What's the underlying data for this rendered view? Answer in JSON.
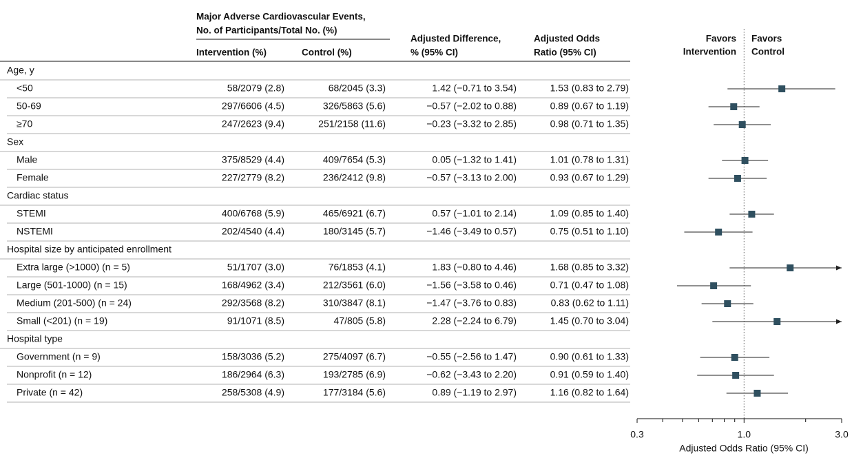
{
  "header": {
    "mace_1": "Major Adverse Cardiovascular Events,",
    "mace_2": "No. of Participants/Total No. (%)",
    "intervention": "Intervention (%)",
    "control": "Control (%)",
    "diff_1": "Adjusted Difference,",
    "diff_2": "% (95% CI)",
    "or_1": "Adjusted Odds",
    "or_2": "Ratio (95% CI)",
    "favors_int_1": "Favors",
    "favors_int_2": "Intervention",
    "favors_ctl_1": "Favors",
    "favors_ctl_2": "Control"
  },
  "table": {
    "rows": [
      {
        "label": "Age, y"
      },
      {
        "label": "<50",
        "cells": [
          "58/2079 (2.8)",
          "68/2045 (3.3)",
          "1.42 (−0.71 to 3.54)",
          "1.53 (0.83 to 2.79)"
        ]
      },
      {
        "label": "50-69",
        "cells": [
          "297/6606 (4.5)",
          "326/5863 (5.6)",
          "−0.57 (−2.02 to 0.88)",
          "0.89 (0.67 to 1.19)"
        ]
      },
      {
        "label": "≥70",
        "cells": [
          "247/2623 (9.4)",
          "251/2158 (11.6)",
          "−0.23 (−3.32 to 2.85)",
          "0.98 (0.71 to 1.35)"
        ]
      },
      {
        "label": "Sex"
      },
      {
        "label": "Male",
        "cells": [
          "375/8529 (4.4)",
          "409/7654 (5.3)",
          "0.05 (−1.32 to 1.41)",
          "1.01 (0.78 to 1.31)"
        ]
      },
      {
        "label": "Female",
        "cells": [
          "227/2779 (8.2)",
          "236/2412 (9.8)",
          "−0.57 (−3.13 to 2.00)",
          "0.93 (0.67 to 1.29)"
        ]
      },
      {
        "label": "Cardiac status"
      },
      {
        "label": "STEMI",
        "cells": [
          "400/6768 (5.9)",
          "465/6921 (6.7)",
          "0.57 (−1.01 to 2.14)",
          "1.09 (0.85 to 1.40)"
        ]
      },
      {
        "label": "NSTEMI",
        "cells": [
          "202/4540 (4.4)",
          "180/3145 (5.7)",
          "−1.46 (−3.49 to 0.57)",
          "0.75 (0.51 to 1.10)"
        ]
      },
      {
        "label": "Hospital size by anticipated enrollment"
      },
      {
        "label": "Extra large (>1000) (n = 5)",
        "cells": [
          "51/1707 (3.0)",
          "76/1853 (4.1)",
          "1.83 (−0.80 to 4.46)",
          "1.68 (0.85 to 3.32)"
        ]
      },
      {
        "label": "Large (501-1000) (n = 15)",
        "cells": [
          "168/4962 (3.4)",
          "212/3561 (6.0)",
          "−1.56 (−3.58 to 0.46)",
          "0.71 (0.47 to 1.08)"
        ]
      },
      {
        "label": "Medium (201-500) (n = 24)",
        "cells": [
          "292/3568 (8.2)",
          "310/3847 (8.1)",
          "−1.47 (−3.76 to 0.83)",
          "0.83 (0.62 to 1.11)"
        ]
      },
      {
        "label": "Small (<201) (n = 19)",
        "cells": [
          "91/1071 (8.5)",
          "47/805 (5.8)",
          "2.28 (−2.24 to 6.79)",
          "1.45 (0.70 to 3.04)"
        ]
      },
      {
        "label": "Hospital type"
      },
      {
        "label": "Government (n = 9)",
        "cells": [
          "158/3036 (5.2)",
          "275/4097 (6.7)",
          "−0.55 (−2.56 to 1.47)",
          "0.90 (0.61 to 1.33)"
        ]
      },
      {
        "label": "Nonprofit (n = 12)",
        "cells": [
          "186/2964 (6.3)",
          "193/2785 (6.9)",
          "−0.62 (−3.43 to 2.20)",
          "0.91 (0.59 to 1.40)"
        ]
      },
      {
        "label": "Private (n = 42)",
        "cells": [
          "258/5308 (4.9)",
          "177/3184 (5.6)",
          "0.89 (−1.19 to 2.97)",
          "1.16 (0.82 to 1.64)"
        ]
      }
    ]
  },
  "chart_data": {
    "type": "forest",
    "x_label": "Adjusted Odds Ratio (95% CI)",
    "log_x": true,
    "color": "#2f4f5f",
    "xlim": [
      0.3,
      3
    ],
    "xticks": [
      0.3,
      {
        "value": 1,
        "label": "1.0"
      },
      {
        "value": 3,
        "label": "3.0"
      }
    ],
    "minor_xticks": [
      0.4,
      0.5,
      0.6,
      0.7,
      0.8,
      0.9,
      2
    ],
    "reference": 1,
    "or": [
      null,
      1.53,
      0.89,
      0.98,
      null,
      1.01,
      0.93,
      null,
      1.09,
      0.75,
      null,
      1.68,
      0.71,
      0.83,
      1.45,
      null,
      0.9,
      0.91,
      1.16
    ],
    "lo": [
      null,
      0.83,
      0.67,
      0.71,
      null,
      0.78,
      0.67,
      null,
      0.85,
      0.51,
      null,
      0.85,
      0.47,
      0.62,
      0.7,
      null,
      0.61,
      0.59,
      0.82
    ],
    "hi": [
      null,
      2.79,
      1.19,
      1.35,
      null,
      1.31,
      1.29,
      null,
      1.4,
      1.1,
      null,
      3.32,
      1.08,
      1.11,
      3.04,
      null,
      1.33,
      1.4,
      1.64
    ]
  }
}
